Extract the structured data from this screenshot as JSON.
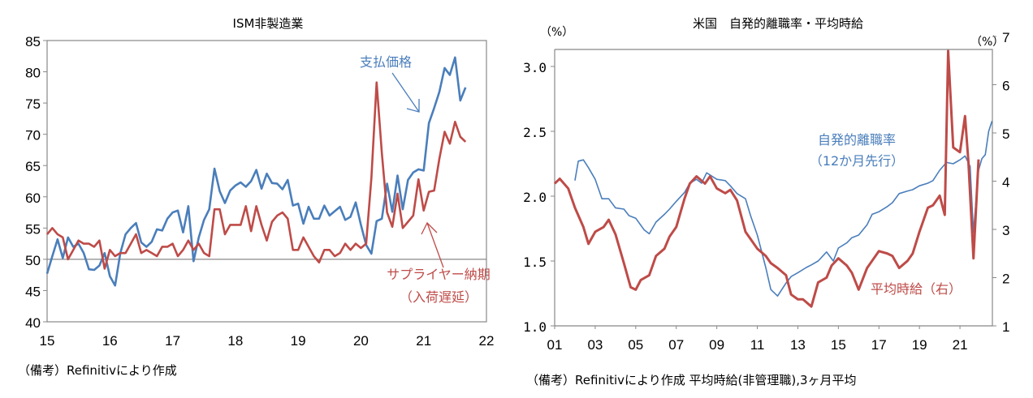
{
  "chart_data": [
    {
      "type": "line",
      "title": "ISM非製造業",
      "xlabel": "",
      "ylabel": "",
      "x_start": "2015-01",
      "frequency": "monthly",
      "xlim": [
        15,
        22
      ],
      "x_ticks": [
        "15",
        "16",
        "17",
        "18",
        "19",
        "20",
        "21",
        "22"
      ],
      "ylim": [
        40,
        85
      ],
      "y_ticks": [
        40,
        45,
        50,
        55,
        60,
        65,
        70,
        75,
        80,
        85
      ],
      "reference_line": 50,
      "grid": false,
      "series": [
        {
          "name": "支払価格",
          "color": "#4a7ebb",
          "values": [
            47.7,
            50.5,
            53.2,
            50.2,
            53.5,
            52,
            52.5,
            51,
            48.4,
            48.3,
            49,
            51,
            47.3,
            45.8,
            51,
            54,
            55,
            55.8,
            52.7,
            52,
            52.8,
            54.8,
            54.6,
            56.5,
            57.5,
            57.8,
            54.3,
            58.5,
            49.7,
            53.5,
            56.3,
            58,
            64.5,
            60.9,
            59,
            61,
            61.8,
            62.3,
            61.6,
            62.5,
            64.3,
            61.3,
            63.7,
            62.2,
            62.1,
            61.2,
            62.7,
            58.6,
            58.9,
            55.7,
            58.4,
            56.5,
            56.5,
            58.6,
            57,
            57.7,
            58.4,
            56.3,
            56.8,
            59.1,
            55.5,
            52.3,
            50.9,
            56.1,
            56.5,
            62.1,
            57.6,
            63.4,
            58,
            62.7,
            63.9,
            64.4,
            64.2,
            71.8,
            74.2,
            76.8,
            80.6,
            79.5,
            82.3,
            75.4,
            77.5
          ]
        },
        {
          "name": "サプライヤー納期（入荷遅延）",
          "color": "#be4b48",
          "values": [
            54,
            55,
            54,
            53.5,
            50,
            51.5,
            53,
            52.5,
            52.5,
            52,
            53,
            48.5,
            51.5,
            50.5,
            51,
            51,
            52.5,
            54,
            51,
            51.5,
            51,
            50.5,
            52,
            52,
            52.5,
            50.5,
            51.5,
            53,
            51.5,
            52.5,
            51,
            50.5,
            58,
            58,
            54,
            55.5,
            55.5,
            55.5,
            58.5,
            54.5,
            58.5,
            55.5,
            53,
            56,
            57,
            57.5,
            56.5,
            51.5,
            51.5,
            53.5,
            52,
            50.5,
            49.5,
            51.5,
            51.5,
            50.5,
            51,
            52.5,
            51.5,
            52.5,
            51.8,
            52.5,
            63,
            78.3,
            67,
            57.5,
            55.2,
            60.5,
            55,
            56,
            57,
            62.8,
            57.8,
            60.8,
            61,
            66.1,
            70.4,
            68.5,
            72,
            69.6,
            68.8
          ]
        }
      ],
      "annotations": [
        "支払価格",
        "サプライヤー納期",
        "（入荷遅延）"
      ],
      "note": "（備考）Refinitivにより作成"
    },
    {
      "type": "line",
      "title": "米国　自発的離職率・平均時給",
      "left_unit": "（%）",
      "right_unit": "（%）",
      "xlim": [
        2001,
        2022.6
      ],
      "x_ticks": [
        "01",
        "03",
        "05",
        "07",
        "09",
        "11",
        "13",
        "15",
        "17",
        "19",
        "21"
      ],
      "ylim_left": [
        1.0,
        3.2
      ],
      "y_ticks_left": [
        "1.0",
        "1.5",
        "2.0",
        "2.5",
        "3.0"
      ],
      "ylim_right": [
        1,
        7
      ],
      "y_ticks_right": [
        "1",
        "2",
        "3",
        "4",
        "5",
        "6",
        "7"
      ],
      "grid": false,
      "series": [
        {
          "name": "自発的離職率（12か月先行）",
          "axis": "left",
          "color": "#4a7ebb",
          "points": [
            [
              "2002-01",
              2.12
            ],
            [
              "2002-03",
              2.27
            ],
            [
              "2002-06",
              2.28
            ],
            [
              "2002-09",
              2.22
            ],
            [
              "2003-01",
              2.13
            ],
            [
              "2003-05",
              1.98
            ],
            [
              "2003-09",
              1.98
            ],
            [
              "2004-01",
              1.91
            ],
            [
              "2004-06",
              1.9
            ],
            [
              "2004-09",
              1.85
            ],
            [
              "2005-01",
              1.83
            ],
            [
              "2005-06",
              1.74
            ],
            [
              "2005-09",
              1.71
            ],
            [
              "2006-01",
              1.8
            ],
            [
              "2006-06",
              1.86
            ],
            [
              "2006-09",
              1.9
            ],
            [
              "2007-01",
              1.96
            ],
            [
              "2007-06",
              2.03
            ],
            [
              "2007-09",
              2.1
            ],
            [
              "2008-01",
              2.13
            ],
            [
              "2008-04",
              2.1
            ],
            [
              "2008-07",
              2.18
            ],
            [
              "2009-01",
              2.13
            ],
            [
              "2009-06",
              2.12
            ],
            [
              "2009-09",
              2.08
            ],
            [
              "2010-01",
              2.02
            ],
            [
              "2010-06",
              1.98
            ],
            [
              "2010-09",
              1.85
            ],
            [
              "2011-01",
              1.7
            ],
            [
              "2011-06",
              1.45
            ],
            [
              "2011-09",
              1.28
            ],
            [
              "2012-01",
              1.23
            ],
            [
              "2012-06",
              1.33
            ],
            [
              "2012-09",
              1.38
            ],
            [
              "2013-01",
              1.41
            ],
            [
              "2013-06",
              1.45
            ],
            [
              "2013-09",
              1.47
            ],
            [
              "2014-01",
              1.5
            ],
            [
              "2014-06",
              1.57
            ],
            [
              "2014-10",
              1.5
            ],
            [
              "2015-01",
              1.6
            ],
            [
              "2015-06",
              1.64
            ],
            [
              "2015-09",
              1.68
            ],
            [
              "2016-01",
              1.7
            ],
            [
              "2016-06",
              1.78
            ],
            [
              "2016-09",
              1.86
            ],
            [
              "2017-01",
              1.88
            ],
            [
              "2017-06",
              1.92
            ],
            [
              "2017-09",
              1.95
            ],
            [
              "2018-01",
              2.02
            ],
            [
              "2018-06",
              2.04
            ],
            [
              "2018-09",
              2.05
            ],
            [
              "2019-01",
              2.08
            ],
            [
              "2019-06",
              2.1
            ],
            [
              "2019-09",
              2.12
            ],
            [
              "2020-01",
              2.2
            ],
            [
              "2020-05",
              2.26
            ],
            [
              "2020-09",
              2.25
            ],
            [
              "2021-01",
              2.28
            ],
            [
              "2021-04",
              2.31
            ],
            [
              "2021-07",
              2.23
            ],
            [
              "2021-09",
              1.72
            ],
            [
              "2021-12",
              2.2
            ],
            [
              "2022-02",
              2.29
            ],
            [
              "2022-04",
              2.32
            ],
            [
              "2022-06",
              2.5
            ],
            [
              "2022-08",
              2.58
            ]
          ]
        },
        {
          "name": "平均時給（右）",
          "axis": "right",
          "color": "#be4b48",
          "points": [
            [
              "2001-01",
              3.95
            ],
            [
              "2001-04",
              4.05
            ],
            [
              "2001-09",
              3.85
            ],
            [
              "2002-01",
              3.45
            ],
            [
              "2002-06",
              3.05
            ],
            [
              "2002-09",
              2.7
            ],
            [
              "2003-01",
              2.95
            ],
            [
              "2003-06",
              3.05
            ],
            [
              "2003-09",
              3.2
            ],
            [
              "2004-01",
              2.9
            ],
            [
              "2004-06",
              2.3
            ],
            [
              "2004-10",
              1.8
            ],
            [
              "2005-01",
              1.75
            ],
            [
              "2005-04",
              1.95
            ],
            [
              "2005-09",
              2.05
            ],
            [
              "2006-01",
              2.45
            ],
            [
              "2006-06",
              2.6
            ],
            [
              "2006-09",
              2.85
            ],
            [
              "2007-01",
              3.05
            ],
            [
              "2007-06",
              3.65
            ],
            [
              "2007-09",
              3.95
            ],
            [
              "2008-01",
              4.1
            ],
            [
              "2008-06",
              3.95
            ],
            [
              "2008-09",
              4.1
            ],
            [
              "2009-01",
              3.85
            ],
            [
              "2009-06",
              3.75
            ],
            [
              "2009-09",
              3.82
            ],
            [
              "2010-01",
              3.6
            ],
            [
              "2010-06",
              2.95
            ],
            [
              "2010-09",
              2.8
            ],
            [
              "2011-01",
              2.6
            ],
            [
              "2011-06",
              2.45
            ],
            [
              "2011-09",
              2.3
            ],
            [
              "2012-01",
              2.2
            ],
            [
              "2012-06",
              2.05
            ],
            [
              "2012-09",
              1.65
            ],
            [
              "2013-01",
              1.55
            ],
            [
              "2013-04",
              1.55
            ],
            [
              "2013-09",
              1.4
            ],
            [
              "2014-01",
              1.9
            ],
            [
              "2014-06",
              2.0
            ],
            [
              "2014-09",
              2.25
            ],
            [
              "2015-01",
              2.4
            ],
            [
              "2015-06",
              2.25
            ],
            [
              "2015-09",
              2.1
            ],
            [
              "2016-01",
              1.75
            ],
            [
              "2016-06",
              2.2
            ],
            [
              "2016-09",
              2.35
            ],
            [
              "2017-01",
              2.55
            ],
            [
              "2017-06",
              2.5
            ],
            [
              "2017-09",
              2.45
            ],
            [
              "2018-01",
              2.2
            ],
            [
              "2018-06",
              2.35
            ],
            [
              "2018-09",
              2.5
            ],
            [
              "2019-01",
              2.95
            ],
            [
              "2019-06",
              3.45
            ],
            [
              "2019-09",
              3.5
            ],
            [
              "2020-01",
              3.7
            ],
            [
              "2020-04",
              3.3
            ],
            [
              "2020-06",
              6.7
            ],
            [
              "2020-09",
              4.7
            ],
            [
              "2021-01",
              4.6
            ],
            [
              "2021-04",
              5.35
            ],
            [
              "2021-06",
              4.4
            ],
            [
              "2021-09",
              2.4
            ],
            [
              "2021-12",
              4.45
            ]
          ]
        }
      ],
      "annotations": [
        "自発的離職率",
        "（12か月先行）",
        "平均時給（右）"
      ],
      "note": "（備考）Refinitivにより作成 平均時給(非管理職),3ヶ月平均"
    }
  ]
}
